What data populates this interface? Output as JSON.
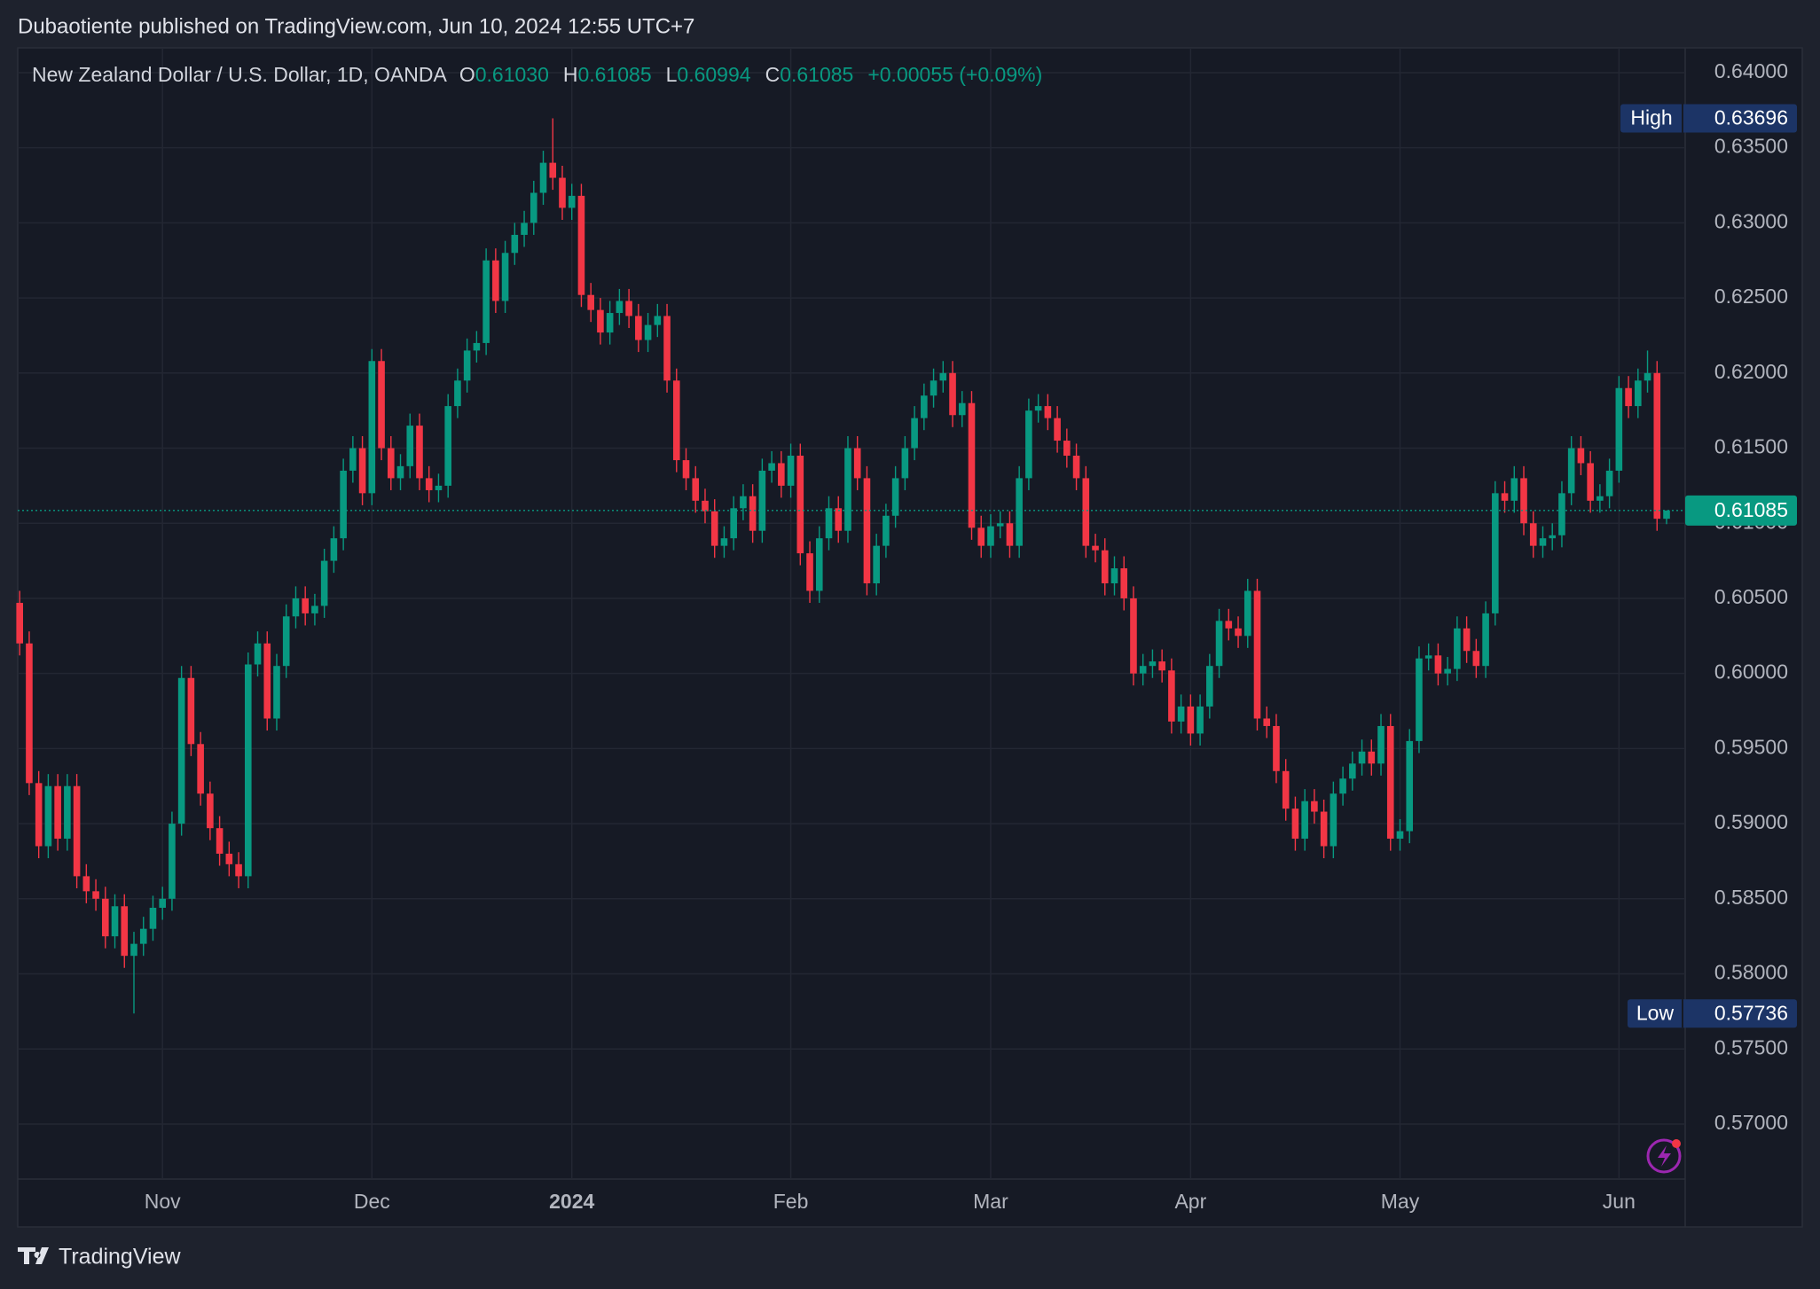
{
  "page": {
    "byline": "Dubaotiente published on TradingView.com, Jun 10, 2024 12:55 UTC+7",
    "brand": "TradingView"
  },
  "chart_data": {
    "type": "candlestick",
    "legend": {
      "symbol": "New Zealand Dollar / U.S. Dollar, 1D, OANDA",
      "fields": [
        {
          "key": "O",
          "value": "0.61030"
        },
        {
          "key": "H",
          "value": "0.61085"
        },
        {
          "key": "L",
          "value": "0.60994"
        },
        {
          "key": "C",
          "value": "0.61085"
        }
      ],
      "change": "+0.00055 (+0.09%)"
    },
    "up_color": "#089981",
    "down_color": "#f23645",
    "grid": true,
    "ylim": [
      0.56315,
      0.64165
    ],
    "yticks": [
      {
        "value": 0.57,
        "label": "0.57000"
      },
      {
        "value": 0.575,
        "label": "0.57500"
      },
      {
        "value": 0.58,
        "label": "0.58000"
      },
      {
        "value": 0.585,
        "label": "0.58500"
      },
      {
        "value": 0.59,
        "label": "0.59000"
      },
      {
        "value": 0.595,
        "label": "0.59500"
      },
      {
        "value": 0.6,
        "label": "0.60000"
      },
      {
        "value": 0.605,
        "label": "0.60500"
      },
      {
        "value": 0.61,
        "label": "0.61000"
      },
      {
        "value": 0.615,
        "label": "0.61500"
      },
      {
        "value": 0.62,
        "label": "0.62000"
      },
      {
        "value": 0.625,
        "label": "0.62500"
      },
      {
        "value": 0.63,
        "label": "0.63000"
      },
      {
        "value": 0.635,
        "label": "0.63500"
      },
      {
        "value": 0.64,
        "label": "0.64000"
      }
    ],
    "last_price": {
      "value": 0.61085,
      "label": "0.61085"
    },
    "high_marker": {
      "name": "High",
      "value": 0.63696,
      "label": "0.63696"
    },
    "low_marker": {
      "name": "Low",
      "value": 0.57736,
      "label": "0.57736"
    },
    "categories": [
      null,
      null,
      null,
      null,
      null,
      null,
      null,
      null,
      null,
      null,
      null,
      null,
      null,
      null,
      null,
      "Nov",
      null,
      null,
      null,
      null,
      null,
      null,
      null,
      null,
      null,
      null,
      null,
      null,
      null,
      null,
      null,
      null,
      null,
      null,
      null,
      null,
      null,
      "Dec",
      null,
      null,
      null,
      null,
      null,
      null,
      null,
      null,
      null,
      null,
      null,
      null,
      null,
      null,
      null,
      null,
      null,
      null,
      null,
      null,
      "2024",
      null,
      null,
      null,
      null,
      null,
      null,
      null,
      null,
      null,
      null,
      null,
      null,
      null,
      null,
      null,
      null,
      null,
      null,
      null,
      null,
      null,
      null,
      "Feb",
      null,
      null,
      null,
      null,
      null,
      null,
      null,
      null,
      null,
      null,
      null,
      null,
      null,
      null,
      null,
      null,
      null,
      null,
      null,
      null,
      "Mar",
      null,
      null,
      null,
      null,
      null,
      null,
      null,
      null,
      null,
      null,
      null,
      null,
      null,
      null,
      null,
      null,
      null,
      null,
      null,
      null,
      "Apr",
      null,
      null,
      null,
      null,
      null,
      null,
      null,
      null,
      null,
      null,
      null,
      null,
      null,
      null,
      null,
      null,
      null,
      null,
      null,
      null,
      null,
      "May",
      null,
      null,
      null,
      null,
      null,
      null,
      null,
      null,
      null,
      null,
      null,
      null,
      null,
      null,
      null,
      null,
      null,
      null,
      null,
      null,
      null,
      null,
      "Jun",
      null,
      null,
      null,
      null,
      null
    ],
    "open": [
      0.6047,
      0.602,
      0.5927,
      0.5885,
      0.5925,
      0.589,
      0.5925,
      0.5865,
      0.5855,
      0.585,
      0.5825,
      0.5845,
      0.5812,
      0.582,
      0.583,
      0.5844,
      0.585,
      0.59,
      0.5997,
      0.5953,
      0.592,
      0.5897,
      0.588,
      0.5873,
      0.5865,
      0.6006,
      0.602,
      0.597,
      0.6005,
      0.6038,
      0.605,
      0.604,
      0.6045,
      0.6075,
      0.609,
      0.6135,
      0.615,
      0.612,
      0.6208,
      0.615,
      0.613,
      0.6138,
      0.6165,
      0.613,
      0.6122,
      0.6125,
      0.6178,
      0.6195,
      0.6215,
      0.622,
      0.6275,
      0.6248,
      0.628,
      0.6292,
      0.63,
      0.632,
      0.634,
      0.633,
      0.631,
      0.6318,
      0.6252,
      0.6242,
      0.6227,
      0.624,
      0.6248,
      0.6238,
      0.6222,
      0.6232,
      0.6238,
      0.6195,
      0.6142,
      0.613,
      0.6115,
      0.6108,
      0.6085,
      0.609,
      0.611,
      0.6118,
      0.6095,
      0.6135,
      0.614,
      0.6125,
      0.6145,
      0.608,
      0.6055,
      0.609,
      0.611,
      0.6095,
      0.615,
      0.613,
      0.606,
      0.6085,
      0.6105,
      0.613,
      0.615,
      0.617,
      0.6185,
      0.6195,
      0.62,
      0.6172,
      0.618,
      0.6097,
      0.6085,
      0.6098,
      0.61,
      0.6085,
      0.613,
      0.6175,
      0.6178,
      0.617,
      0.6155,
      0.6145,
      0.613,
      0.6085,
      0.6082,
      0.606,
      0.607,
      0.605,
      0.6,
      0.6005,
      0.6008,
      0.6002,
      0.5968,
      0.5978,
      0.596,
      0.5978,
      0.6005,
      0.6035,
      0.603,
      0.6025,
      0.6055,
      0.597,
      0.5965,
      0.5935,
      0.591,
      0.589,
      0.5915,
      0.5908,
      0.5885,
      0.592,
      0.593,
      0.594,
      0.5948,
      0.594,
      0.5965,
      0.589,
      0.5895,
      0.5955,
      0.601,
      0.6012,
      0.6,
      0.6003,
      0.603,
      0.6015,
      0.6005,
      0.604,
      0.612,
      0.6115,
      0.613,
      0.61,
      0.6085,
      0.609,
      0.6092,
      0.612,
      0.615,
      0.614,
      0.6115,
      0.6118,
      0.6135,
      0.619,
      0.6178,
      0.6195,
      0.62,
      0.6103
    ],
    "high": [
      0.6055,
      0.6028,
      0.5935,
      0.5933,
      0.5933,
      0.5933,
      0.5933,
      0.5873,
      0.5863,
      0.5858,
      0.5853,
      0.5853,
      0.5828,
      0.5838,
      0.5852,
      0.5858,
      0.5908,
      0.6005,
      0.6005,
      0.5961,
      0.5928,
      0.5905,
      0.5888,
      0.5881,
      0.6014,
      0.6028,
      0.6028,
      0.6013,
      0.6046,
      0.6058,
      0.6058,
      0.6053,
      0.6083,
      0.6098,
      0.6143,
      0.6158,
      0.6158,
      0.6216,
      0.6216,
      0.6158,
      0.6146,
      0.6173,
      0.6173,
      0.6138,
      0.6133,
      0.6186,
      0.6203,
      0.6223,
      0.6228,
      0.6283,
      0.6283,
      0.6288,
      0.63,
      0.6308,
      0.6328,
      0.6348,
      0.63696,
      0.6338,
      0.6326,
      0.6326,
      0.626,
      0.625,
      0.6248,
      0.6256,
      0.6256,
      0.6246,
      0.624,
      0.6246,
      0.6246,
      0.6203,
      0.615,
      0.6138,
      0.6123,
      0.6116,
      0.6098,
      0.6118,
      0.6126,
      0.6126,
      0.6143,
      0.6148,
      0.6148,
      0.6153,
      0.6153,
      0.6088,
      0.6098,
      0.6118,
      0.6118,
      0.6158,
      0.6158,
      0.6138,
      0.6093,
      0.6113,
      0.6138,
      0.6158,
      0.6178,
      0.6193,
      0.6203,
      0.6208,
      0.6208,
      0.6188,
      0.6188,
      0.6105,
      0.6106,
      0.6108,
      0.6108,
      0.6138,
      0.6183,
      0.6186,
      0.6186,
      0.6178,
      0.6163,
      0.6153,
      0.6138,
      0.6093,
      0.609,
      0.6078,
      0.6078,
      0.6058,
      0.6013,
      0.6016,
      0.6016,
      0.601,
      0.5986,
      0.5986,
      0.5986,
      0.6013,
      0.6043,
      0.6043,
      0.6038,
      0.6063,
      0.6063,
      0.5978,
      0.5973,
      0.5943,
      0.5918,
      0.5923,
      0.5923,
      0.5916,
      0.5928,
      0.5938,
      0.5948,
      0.5956,
      0.5956,
      0.5973,
      0.5973,
      0.5903,
      0.5963,
      0.6018,
      0.602,
      0.602,
      0.6011,
      0.6038,
      0.6038,
      0.6023,
      0.6048,
      0.6128,
      0.6128,
      0.6138,
      0.6138,
      0.6108,
      0.6098,
      0.61,
      0.6128,
      0.6158,
      0.6158,
      0.6148,
      0.6126,
      0.6143,
      0.6198,
      0.6198,
      0.6203,
      0.6215,
      0.6208,
      0.61085
    ],
    "low": [
      0.6012,
      0.5919,
      0.5877,
      0.5877,
      0.5882,
      0.5882,
      0.5857,
      0.5847,
      0.5842,
      0.5817,
      0.5817,
      0.5804,
      0.57736,
      0.5812,
      0.5822,
      0.5836,
      0.5842,
      0.5892,
      0.5945,
      0.5912,
      0.5889,
      0.5872,
      0.5865,
      0.5857,
      0.5857,
      0.5998,
      0.5962,
      0.5962,
      0.5997,
      0.603,
      0.6032,
      0.6032,
      0.6037,
      0.6067,
      0.6082,
      0.6127,
      0.6112,
      0.6112,
      0.6142,
      0.6122,
      0.6122,
      0.613,
      0.6122,
      0.6114,
      0.6114,
      0.6117,
      0.617,
      0.6187,
      0.6207,
      0.6212,
      0.624,
      0.624,
      0.6272,
      0.6284,
      0.6292,
      0.6312,
      0.6322,
      0.6302,
      0.6302,
      0.6244,
      0.6234,
      0.6219,
      0.6219,
      0.6232,
      0.623,
      0.6214,
      0.6214,
      0.6224,
      0.6187,
      0.6134,
      0.6122,
      0.6107,
      0.61,
      0.6077,
      0.6077,
      0.6082,
      0.6102,
      0.6087,
      0.6087,
      0.6127,
      0.6117,
      0.6117,
      0.6072,
      0.6047,
      0.6047,
      0.6082,
      0.6087,
      0.6087,
      0.6122,
      0.6052,
      0.6052,
      0.6077,
      0.6097,
      0.6122,
      0.6142,
      0.6162,
      0.6177,
      0.6187,
      0.6164,
      0.6164,
      0.6089,
      0.6077,
      0.6077,
      0.609,
      0.6077,
      0.6077,
      0.6122,
      0.6167,
      0.6162,
      0.6147,
      0.6137,
      0.6122,
      0.6077,
      0.6074,
      0.6052,
      0.6052,
      0.6042,
      0.5992,
      0.5992,
      0.5997,
      0.5994,
      0.596,
      0.596,
      0.5952,
      0.5952,
      0.597,
      0.5997,
      0.6022,
      0.6017,
      0.6017,
      0.5962,
      0.5957,
      0.5927,
      0.5902,
      0.5882,
      0.5882,
      0.59,
      0.5877,
      0.5877,
      0.5912,
      0.5922,
      0.5932,
      0.5932,
      0.5932,
      0.5882,
      0.5882,
      0.5887,
      0.5947,
      0.6002,
      0.5992,
      0.5992,
      0.5995,
      0.6007,
      0.5997,
      0.5997,
      0.6032,
      0.6107,
      0.6107,
      0.6092,
      0.6077,
      0.6077,
      0.6082,
      0.6084,
      0.6112,
      0.6132,
      0.6107,
      0.6107,
      0.611,
      0.6127,
      0.617,
      0.617,
      0.6187,
      0.6095,
      0.60994
    ],
    "close": [
      0.602,
      0.5927,
      0.5885,
      0.5925,
      0.589,
      0.5925,
      0.5865,
      0.5855,
      0.585,
      0.5825,
      0.5845,
      0.5812,
      0.582,
      0.583,
      0.5844,
      0.585,
      0.59,
      0.5997,
      0.5953,
      0.592,
      0.5897,
      0.588,
      0.5873,
      0.5865,
      0.6006,
      0.602,
      0.597,
      0.6005,
      0.6038,
      0.605,
      0.604,
      0.6045,
      0.6075,
      0.609,
      0.6135,
      0.615,
      0.612,
      0.6208,
      0.615,
      0.613,
      0.6138,
      0.6165,
      0.613,
      0.6122,
      0.6125,
      0.6178,
      0.6195,
      0.6215,
      0.622,
      0.6275,
      0.6248,
      0.628,
      0.6292,
      0.63,
      0.632,
      0.634,
      0.633,
      0.631,
      0.6318,
      0.6252,
      0.6242,
      0.6227,
      0.624,
      0.6248,
      0.6238,
      0.6222,
      0.6232,
      0.6238,
      0.6195,
      0.6142,
      0.613,
      0.6115,
      0.6108,
      0.6085,
      0.609,
      0.611,
      0.6118,
      0.6095,
      0.6135,
      0.614,
      0.6125,
      0.6145,
      0.608,
      0.6055,
      0.609,
      0.611,
      0.6095,
      0.615,
      0.613,
      0.606,
      0.6085,
      0.6105,
      0.613,
      0.615,
      0.617,
      0.6185,
      0.6195,
      0.62,
      0.6172,
      0.618,
      0.6097,
      0.6085,
      0.6098,
      0.61,
      0.6085,
      0.613,
      0.6175,
      0.6178,
      0.617,
      0.6155,
      0.6145,
      0.613,
      0.6085,
      0.6082,
      0.606,
      0.607,
      0.605,
      0.6,
      0.6005,
      0.6008,
      0.6002,
      0.5968,
      0.5978,
      0.596,
      0.5978,
      0.6005,
      0.6035,
      0.603,
      0.6025,
      0.6055,
      0.597,
      0.5965,
      0.5935,
      0.591,
      0.589,
      0.5915,
      0.5908,
      0.5885,
      0.592,
      0.593,
      0.594,
      0.5948,
      0.594,
      0.5965,
      0.589,
      0.5895,
      0.5955,
      0.601,
      0.6012,
      0.6,
      0.6003,
      0.603,
      0.6015,
      0.6005,
      0.604,
      0.612,
      0.6115,
      0.613,
      0.61,
      0.6085,
      0.609,
      0.6092,
      0.612,
      0.615,
      0.614,
      0.6115,
      0.6118,
      0.6135,
      0.619,
      0.6178,
      0.6195,
      0.62,
      0.6103,
      0.61085
    ]
  }
}
